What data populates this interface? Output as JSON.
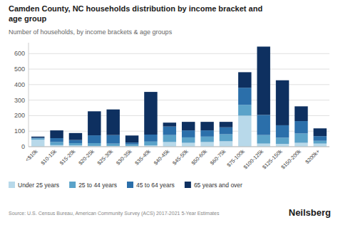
{
  "chart_data": {
    "type": "bar",
    "stacked": true,
    "title": "Camden County, NC households distribution by income bracket and\nage group",
    "subtitle": "Number of households, by income brackets & age groups",
    "annotations": [
      "Source: U.S. Census Bureau, American Community Survey (ACS) 2017-2021 5-Year Estimates",
      "Neilsberg"
    ],
    "categories": [
      "<$10k",
      "$10-15k",
      "$15-20k",
      "$20-25k",
      "$25-30k",
      "$30-35k",
      "$35-40k",
      "$40-45k",
      "$45-50k",
      "$50-60k",
      "$60-75k",
      "$75-100k",
      "$100-125k",
      "$125-150k",
      "$150-200k",
      "$200k+"
    ],
    "series": [
      {
        "name": "Under 25 years",
        "color": "#b8d9ea",
        "values": [
          45,
          10,
          8,
          5,
          5,
          5,
          8,
          30,
          25,
          30,
          35,
          200,
          20,
          18,
          25,
          20
        ]
      },
      {
        "name": "25 to 44 years",
        "color": "#5ba3c9",
        "values": [
          8,
          20,
          15,
          18,
          15,
          10,
          25,
          45,
          35,
          35,
          45,
          70,
          55,
          40,
          60,
          18
        ]
      },
      {
        "name": "45 to 64 years",
        "color": "#2b6faa",
        "values": [
          5,
          25,
          20,
          50,
          55,
          12,
          45,
          55,
          45,
          40,
          45,
          110,
          130,
          80,
          80,
          30
        ]
      },
      {
        "name": "65 years and over",
        "color": "#0e3060",
        "values": [
          7,
          50,
          45,
          155,
          165,
          45,
          275,
          25,
          55,
          55,
          35,
          100,
          440,
          290,
          95,
          50
        ]
      }
    ],
    "ylim": [
      0,
      670
    ],
    "yticks": [
      0,
      100,
      200,
      300,
      400,
      500,
      600
    ],
    "grid": true,
    "legend": "bottom"
  }
}
